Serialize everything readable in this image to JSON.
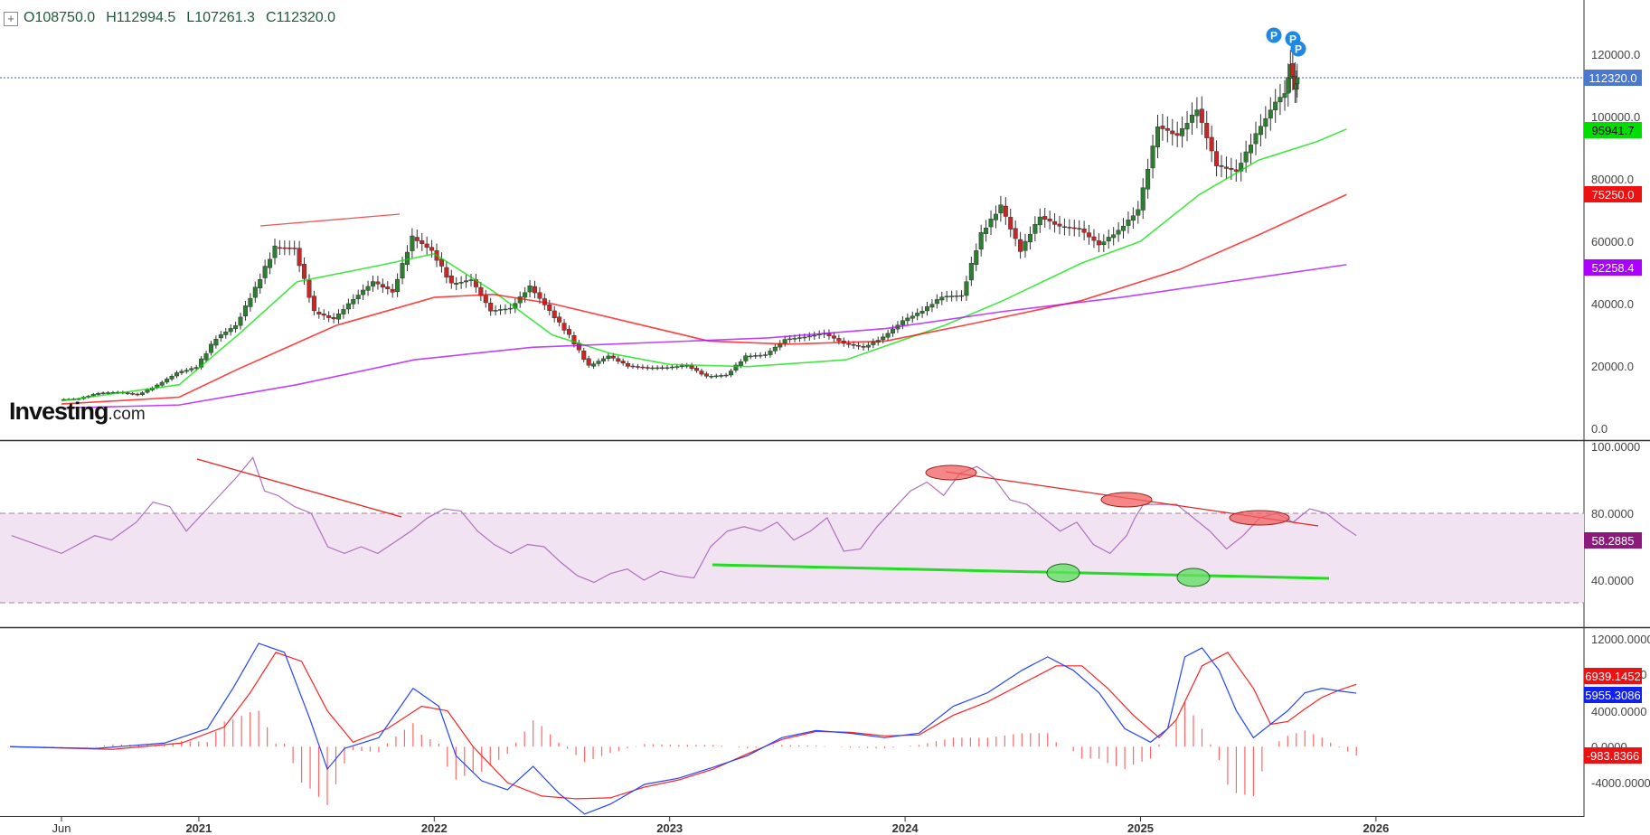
{
  "ohlc": {
    "open": "O108750.0",
    "high": "H112994.5",
    "low": "L107261.3",
    "close": "C112320.0"
  },
  "logo": {
    "main": "Investing",
    "suffix": ".com"
  },
  "colors": {
    "up": "#2e7d32",
    "down": "#c62828",
    "sma50": "#00e000",
    "sma100": "#ff0000",
    "sma200": "#aa00ff",
    "rsi": "#b070c0",
    "macd": "#2244ff",
    "signal": "#ff2222",
    "hist": "#ff6666"
  },
  "chart_data": [
    {
      "type": "line",
      "panel": "price",
      "yticks": [
        "120000.0",
        "100000.0",
        "80000.0",
        "60000.0",
        "40000.0",
        "20000.0",
        "0.0"
      ],
      "ylim": [
        0,
        135000
      ],
      "xticks": [
        "Jun",
        "2021",
        "2022",
        "2023",
        "2024",
        "2025",
        "2026"
      ],
      "x_positions_dates": [
        "2020-06",
        "2021-01",
        "2022-01",
        "2023-01",
        "2024-01",
        "2025-01",
        "2026-01"
      ],
      "series": [
        {
          "values": [
            9200,
            9500,
            11300,
            11600,
            10800,
            13800,
            17800,
            19600,
            29000,
            33000,
            45000,
            58000,
            57800,
            37300,
            35000,
            41500,
            47000,
            43800,
            61300,
            57000,
            46200,
            47700,
            37700,
            38500,
            45500,
            37700,
            29800,
            19900,
            23200,
            20000,
            19400,
            19500,
            20200,
            16600,
            17100,
            23100,
            23600,
            28500,
            29300,
            30500,
            27200,
            26000,
            29200,
            34500,
            37700,
            42300,
            42600,
            62400,
            71300,
            57000,
            68000,
            64700,
            64000,
            58900,
            63400,
            70000,
            97000,
            93800,
            102400,
            84300,
            82500,
            94200,
            104700,
            107500,
            117000,
            108750,
            112320
          ],
          "x": [
            "2020-06",
            "2020-07",
            "2020-08",
            "2020-09",
            "2020-10",
            "2020-11",
            "2020-12",
            "2021-01",
            "2021-02",
            "2021-03",
            "2021-04",
            "2021-05",
            "2021-06",
            "2021-07",
            "2021-08",
            "2021-09",
            "2021-10",
            "2021-11",
            "2021-12",
            "2022-01",
            "2022-02",
            "2022-03",
            "2022-04",
            "2022-05",
            "2022-06",
            "2022-07",
            "2022-08",
            "2022-09",
            "2022-10",
            "2022-11",
            "2022-12",
            "2023-01",
            "2023-02",
            "2023-03",
            "2023-04",
            "2023-05",
            "2023-06",
            "2023-07",
            "2023-08",
            "2023-09",
            "2023-10",
            "2023-11",
            "2023-12",
            "2024-01",
            "2024-02",
            "2024-03",
            "2024-04",
            "2024-05",
            "2024-06",
            "2024-07",
            "2024-08",
            "2024-09",
            "2024-10",
            "2024-11",
            "2024-12",
            "2025-01",
            "2025-02",
            "2025-03",
            "2025-04",
            "2025-05",
            "2025-06",
            "2025-07",
            "2025-08",
            "2025-08-15",
            "2025-08-22",
            "2025-08-29",
            "2025-09"
          ]
        },
        {
          "name": "",
          "values_label": "95941.7",
          "color": "sma50"
        },
        {
          "name": "",
          "values_label": "75250.0",
          "color": "sma100"
        },
        {
          "name": "",
          "values_label": "52258.4",
          "color": "sma200"
        }
      ],
      "price_marker": "112320.0",
      "ma_labels": [
        "95941.7",
        "75250.0",
        "52258.4"
      ],
      "markers": [
        "P",
        "P",
        "P"
      ]
    },
    {
      "type": "line",
      "panel": "rsi",
      "yticks": [
        "100.0000",
        "80.0000",
        "40.0000"
      ],
      "ylim": [
        20,
        100
      ],
      "band": [
        30,
        70
      ],
      "last_label": "58.2885"
    },
    {
      "type": "line",
      "panel": "macd",
      "yticks": [
        "12000.0000",
        "8000.0000",
        "4000.0000",
        "0.0000",
        "-4000.0000"
      ],
      "ylim": [
        -6500,
        13000
      ],
      "labels": [
        "6939.1452",
        "5955.3086",
        "-983.8366"
      ]
    }
  ]
}
